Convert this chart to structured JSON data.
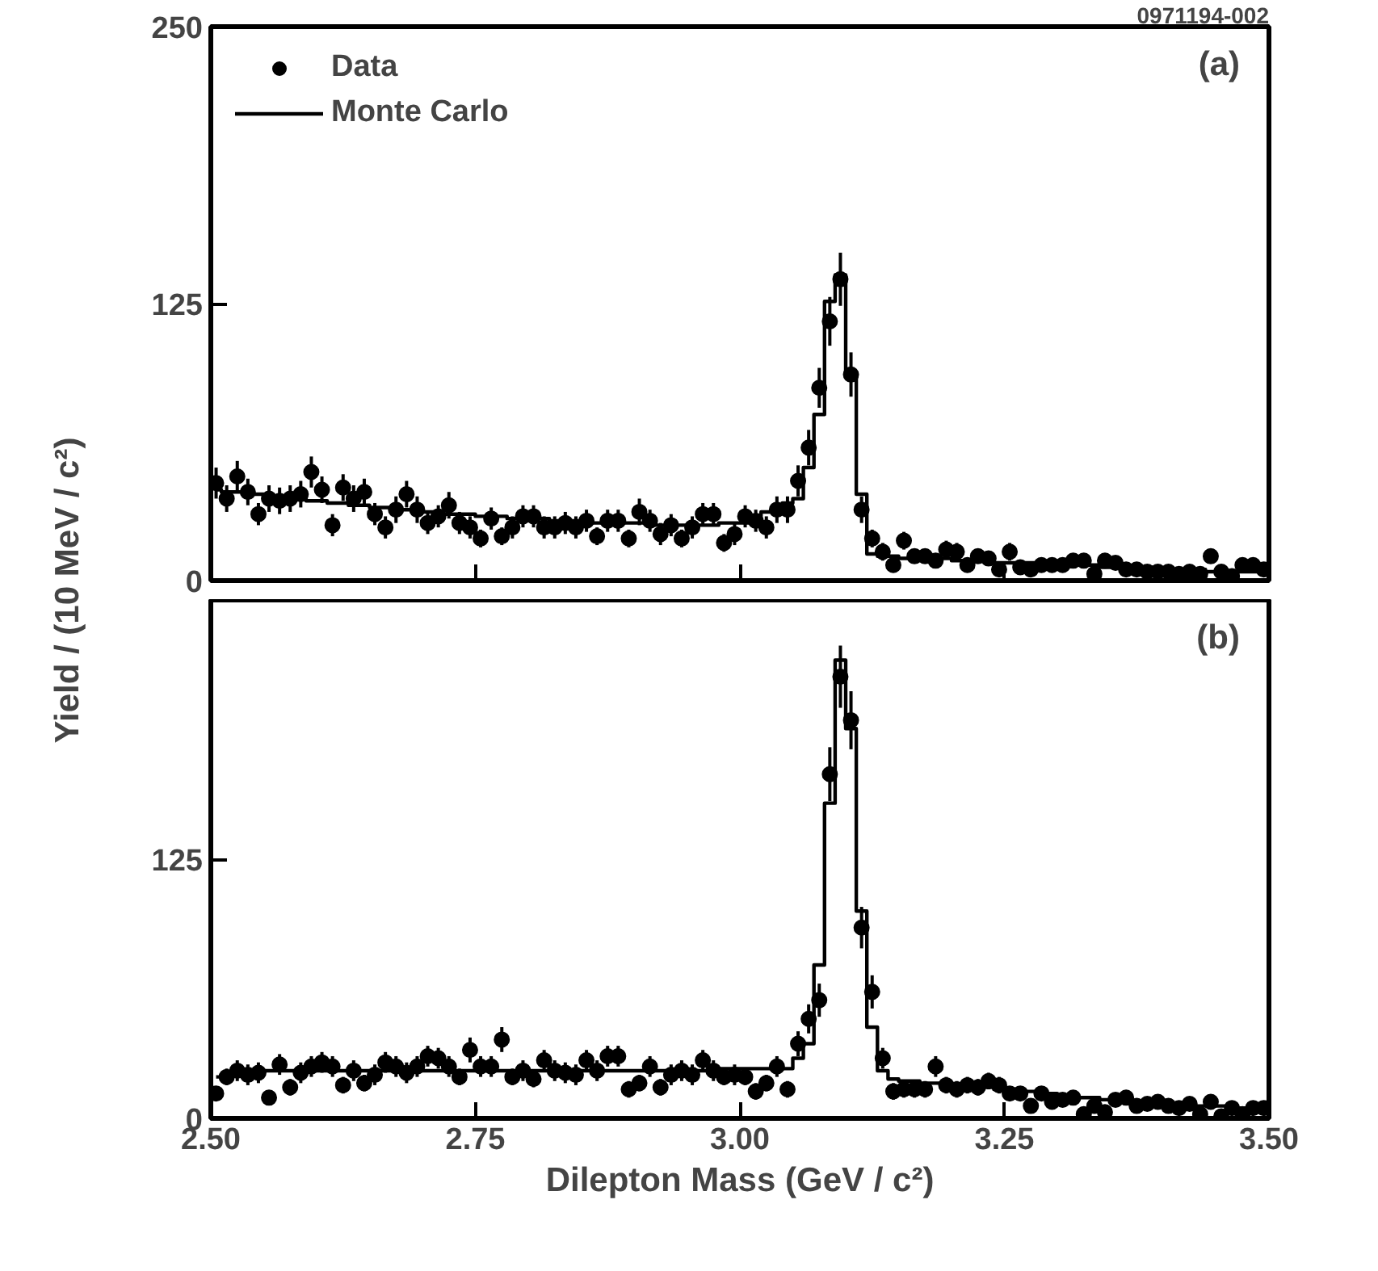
{
  "chart_data": [
    {
      "type": "scatter",
      "annotations": [
        "0971194-002",
        "(a)"
      ],
      "ylabel": "Yield / (10 MeV / c²)",
      "xlim": [
        2.5,
        3.5
      ],
      "ylim": [
        0,
        250
      ],
      "xticks": [
        {
          "value": 2.5,
          "label": null
        },
        {
          "value": 2.75,
          "label": null
        },
        {
          "value": 3.0,
          "label": null
        },
        {
          "value": 3.25,
          "label": null
        },
        {
          "value": 3.5,
          "label": null
        }
      ],
      "yticks": [
        0,
        125,
        250
      ],
      "tick_labels": "y",
      "legend": "top left",
      "x": [
        2.505,
        2.515,
        2.525,
        2.535,
        2.545,
        2.555,
        2.565,
        2.575,
        2.585,
        2.595,
        2.605,
        2.615,
        2.625,
        2.635,
        2.645,
        2.655,
        2.665,
        2.675,
        2.685,
        2.695,
        2.705,
        2.715,
        2.725,
        2.735,
        2.745,
        2.755,
        2.765,
        2.775,
        2.785,
        2.795,
        2.805,
        2.815,
        2.825,
        2.835,
        2.845,
        2.855,
        2.865,
        2.875,
        2.885,
        2.895,
        2.905,
        2.915,
        2.925,
        2.935,
        2.945,
        2.955,
        2.965,
        2.975,
        2.985,
        2.995,
        3.005,
        3.015,
        3.025,
        3.035,
        3.045,
        3.055,
        3.065,
        3.075,
        3.085,
        3.095,
        3.105,
        3.115,
        3.125,
        3.135,
        3.145,
        3.155,
        3.165,
        3.175,
        3.185,
        3.195,
        3.205,
        3.215,
        3.225,
        3.235,
        3.245,
        3.255,
        3.265,
        3.275,
        3.285,
        3.295,
        3.305,
        3.315,
        3.325,
        3.335,
        3.345,
        3.355,
        3.365,
        3.375,
        3.385,
        3.395,
        3.405,
        3.415,
        3.425,
        3.435,
        3.445,
        3.455,
        3.465,
        3.475,
        3.485,
        3.495
      ],
      "series": [
        {
          "name": "Data",
          "marker": "circle",
          "color": "#000000",
          "values": [
            44,
            37,
            47,
            40,
            30,
            37,
            36,
            37,
            39,
            49,
            41,
            25,
            42,
            37,
            40,
            30,
            24,
            32,
            39,
            32,
            26,
            29,
            34,
            26,
            24,
            19,
            28,
            20,
            24,
            29,
            29,
            24,
            24,
            26,
            24,
            27,
            20,
            27,
            27,
            19,
            31,
            27,
            21,
            25,
            19,
            24,
            30,
            30,
            17,
            21,
            29,
            27,
            24,
            32,
            32,
            45,
            60,
            87,
            117,
            136,
            93,
            32,
            19,
            13,
            7,
            18,
            11,
            11,
            9,
            14,
            13,
            7,
            11,
            10,
            5,
            13,
            6,
            5,
            7,
            7,
            7,
            9,
            9,
            3,
            9,
            8,
            5,
            5,
            4,
            4,
            4,
            3,
            4,
            3,
            11,
            4,
            2,
            7,
            7,
            5
          ],
          "errors": [
            7,
            6,
            7,
            6,
            5,
            6,
            6,
            6,
            6,
            7,
            6,
            5,
            6,
            6,
            6,
            5,
            5,
            6,
            6,
            6,
            5,
            5,
            6,
            5,
            5,
            4,
            5,
            4,
            5,
            5,
            5,
            5,
            5,
            5,
            5,
            5,
            4,
            5,
            5,
            4,
            6,
            5,
            5,
            5,
            4,
            5,
            5,
            5,
            4,
            5,
            5,
            5,
            5,
            6,
            6,
            7,
            8,
            9,
            11,
            12,
            10,
            6,
            4,
            4,
            3,
            4,
            3,
            3,
            3,
            4,
            4,
            3,
            3,
            3,
            2,
            4,
            2,
            2,
            3,
            3,
            3,
            3,
            3,
            2,
            3,
            3,
            2,
            2,
            2,
            2,
            2,
            2,
            2,
            2,
            3,
            2,
            2,
            3,
            3,
            2
          ]
        },
        {
          "name": "Monte Carlo",
          "type": "step",
          "line_style": "solid",
          "color": "#000000",
          "values": [
            41,
            40,
            40,
            39,
            39,
            38,
            38,
            37,
            37,
            36,
            36,
            35,
            35,
            34,
            34,
            33,
            33,
            32,
            32,
            31,
            31,
            31,
            30,
            30,
            30,
            29,
            29,
            29,
            28,
            28,
            28,
            28,
            27,
            27,
            27,
            27,
            26,
            26,
            26,
            26,
            26,
            26,
            25,
            25,
            25,
            25,
            25,
            25,
            26,
            26,
            26,
            29,
            31,
            33,
            35,
            37,
            51,
            75,
            126,
            138,
            94,
            39,
            12,
            11,
            11,
            10,
            10,
            10,
            10,
            10,
            9,
            9,
            9,
            9,
            8,
            8,
            8,
            8,
            8,
            7,
            7,
            7,
            7,
            7,
            6,
            6,
            6,
            6,
            6,
            5,
            5,
            5,
            5,
            5,
            4,
            4,
            4,
            4,
            4,
            4
          ]
        }
      ]
    },
    {
      "type": "scatter",
      "annotations": [
        "(b)"
      ],
      "xlabel": "Dilepton Mass (GeV / c²)",
      "xlim": [
        2.5,
        3.5
      ],
      "ylim": [
        0,
        250
      ],
      "xticks": [
        {
          "value": 2.5,
          "label": "2.50"
        },
        {
          "value": 2.75,
          "label": "2.75"
        },
        {
          "value": 3.0,
          "label": "3.00"
        },
        {
          "value": 3.25,
          "label": "3.25"
        },
        {
          "value": 3.5,
          "label": "3.50"
        }
      ],
      "yticks": [
        0,
        125,
        {
          "value": 250,
          "label": null
        }
      ],
      "x": [
        2.505,
        2.515,
        2.525,
        2.535,
        2.545,
        2.555,
        2.565,
        2.575,
        2.585,
        2.595,
        2.605,
        2.615,
        2.625,
        2.635,
        2.645,
        2.655,
        2.665,
        2.675,
        2.685,
        2.695,
        2.705,
        2.715,
        2.725,
        2.735,
        2.745,
        2.755,
        2.765,
        2.775,
        2.785,
        2.795,
        2.805,
        2.815,
        2.825,
        2.835,
        2.845,
        2.855,
        2.865,
        2.875,
        2.885,
        2.895,
        2.905,
        2.915,
        2.925,
        2.935,
        2.945,
        2.955,
        2.965,
        2.975,
        2.985,
        2.995,
        3.005,
        3.015,
        3.025,
        3.035,
        3.045,
        3.055,
        3.065,
        3.075,
        3.085,
        3.095,
        3.105,
        3.115,
        3.125,
        3.135,
        3.145,
        3.155,
        3.165,
        3.175,
        3.185,
        3.195,
        3.205,
        3.215,
        3.225,
        3.235,
        3.245,
        3.255,
        3.265,
        3.275,
        3.285,
        3.295,
        3.305,
        3.315,
        3.325,
        3.335,
        3.345,
        3.355,
        3.365,
        3.375,
        3.385,
        3.395,
        3.405,
        3.415,
        3.425,
        3.435,
        3.445,
        3.455,
        3.465,
        3.475,
        3.485,
        3.495
      ],
      "series": [
        {
          "marker": "circle",
          "color": "#000000",
          "values": [
            12,
            20,
            23,
            21,
            22,
            10,
            26,
            15,
            22,
            25,
            27,
            25,
            16,
            23,
            17,
            21,
            27,
            25,
            22,
            25,
            30,
            29,
            25,
            20,
            33,
            25,
            25,
            38,
            20,
            23,
            19,
            28,
            23,
            22,
            21,
            28,
            23,
            30,
            30,
            14,
            17,
            25,
            15,
            21,
            23,
            21,
            28,
            23,
            20,
            21,
            20,
            13,
            17,
            25,
            14,
            36,
            48,
            57,
            166,
            213,
            192,
            92,
            61,
            29,
            13,
            14,
            14,
            14,
            25,
            16,
            14,
            16,
            15,
            18,
            16,
            12,
            12,
            6,
            12,
            8,
            9,
            10,
            2,
            6,
            3,
            9,
            10,
            6,
            7,
            8,
            6,
            5,
            7,
            2,
            8,
            1,
            5,
            2,
            5,
            5
          ],
          "errors": [
            3,
            4,
            5,
            5,
            5,
            3,
            5,
            4,
            5,
            5,
            5,
            5,
            4,
            5,
            4,
            5,
            5,
            5,
            5,
            5,
            5,
            5,
            5,
            4,
            6,
            5,
            5,
            6,
            4,
            5,
            4,
            5,
            5,
            5,
            5,
            5,
            5,
            5,
            5,
            4,
            4,
            5,
            4,
            5,
            5,
            5,
            5,
            5,
            4,
            5,
            4,
            4,
            4,
            5,
            4,
            6,
            7,
            8,
            13,
            15,
            14,
            10,
            8,
            5,
            4,
            4,
            4,
            4,
            5,
            4,
            4,
            4,
            4,
            4,
            4,
            3,
            3,
            2,
            3,
            3,
            3,
            3,
            1,
            2,
            2,
            3,
            3,
            2,
            3,
            3,
            2,
            2,
            3,
            1,
            3,
            1,
            2,
            1,
            2,
            2
          ]
        },
        {
          "type": "step",
          "line_style": "solid",
          "color": "#000000",
          "values": [
            20,
            21,
            21,
            22,
            22,
            23,
            23,
            23,
            23,
            23,
            23,
            23,
            23,
            23,
            23,
            23,
            23,
            23,
            23,
            23,
            23,
            23,
            23,
            23,
            23,
            23,
            23,
            23,
            23,
            23,
            23,
            23,
            23,
            23,
            23,
            23,
            23,
            23,
            23,
            23,
            23,
            23,
            23,
            23,
            23,
            23,
            23,
            23,
            24,
            24,
            24,
            24,
            24,
            24,
            24,
            29,
            36,
            74,
            152,
            221,
            188,
            100,
            44,
            23,
            19,
            18,
            18,
            17,
            17,
            17,
            16,
            16,
            15,
            15,
            14,
            14,
            13,
            13,
            12,
            12,
            11,
            11,
            10,
            10,
            9,
            9,
            9,
            8,
            8,
            8,
            7,
            7,
            7,
            6,
            6,
            6,
            5,
            5,
            5,
            5
          ]
        }
      ]
    }
  ]
}
